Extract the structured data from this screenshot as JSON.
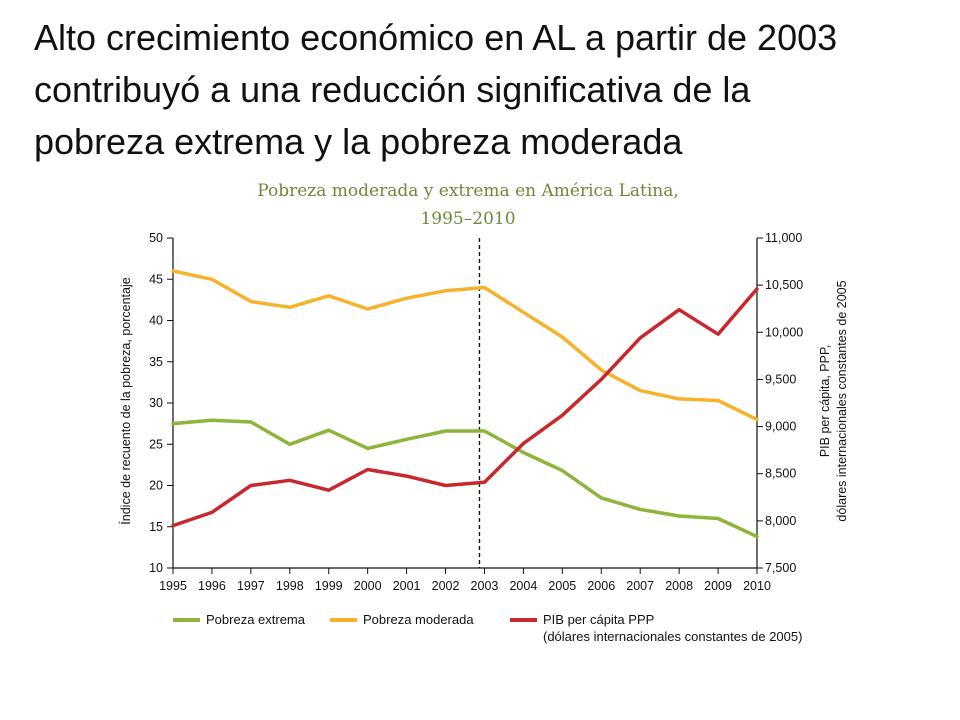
{
  "slide": {
    "title_lines": [
      "Alto crecimiento económico en AL a partir de 2003",
      "contribuyó a una reducción significativa de la",
      "pobreza extrema y la pobreza moderada"
    ]
  },
  "chart_data": {
    "type": "line",
    "title": "Pobreza moderada y extrema en América Latina,",
    "subtitle": "1995–2010",
    "ylabel_left": "Índice de recuento de la pobreza, porcentaje",
    "ylabel_right": [
      "PIB per cápita, PPP,",
      "dólares internacionales  constantes de 2005"
    ],
    "x": [
      "1995",
      "1996",
      "1997",
      "1998",
      "1999",
      "2000",
      "2001",
      "2002",
      "2003",
      "2004",
      "2005",
      "2006",
      "2007",
      "2008",
      "2009",
      "2010"
    ],
    "ylim_left": [
      10,
      50
    ],
    "yticks_left": [
      "10",
      "15",
      "20",
      "25",
      "30",
      "35",
      "40",
      "45",
      "50"
    ],
    "ylim_right": [
      7500,
      11000
    ],
    "yticks_right": [
      "7,500",
      "8,000",
      "8,500",
      "9,000",
      "9,500",
      "10,000",
      "10,500",
      "11,000"
    ],
    "reference_line_x": "2003",
    "series": [
      {
        "name": "Pobreza extrema",
        "axis": "left",
        "color": "#8db43b",
        "values": [
          27.5,
          27.9,
          27.7,
          25.0,
          26.7,
          24.5,
          25.6,
          26.6,
          26.6,
          24.0,
          21.8,
          18.5,
          17.1,
          16.3,
          16.0,
          13.8
        ]
      },
      {
        "name": "Pobreza moderada",
        "axis": "left",
        "color": "#f7b22c",
        "values": [
          46.0,
          45.0,
          42.3,
          41.6,
          43.0,
          41.4,
          42.7,
          43.6,
          44.0,
          41.0,
          38.0,
          34.0,
          31.5,
          30.5,
          30.3,
          28.0
        ]
      },
      {
        "name": "PIB per cápita PPP",
        "name_line2": "(dólares internacionales constantes de 2005)",
        "axis": "right",
        "color": "#c8272d",
        "values": [
          7950,
          8090,
          8375,
          8430,
          8325,
          8545,
          8475,
          8375,
          8410,
          8820,
          9120,
          9500,
          9940,
          10240,
          9980,
          10460
        ]
      }
    ],
    "legend_position": "bottom",
    "grid": false
  }
}
